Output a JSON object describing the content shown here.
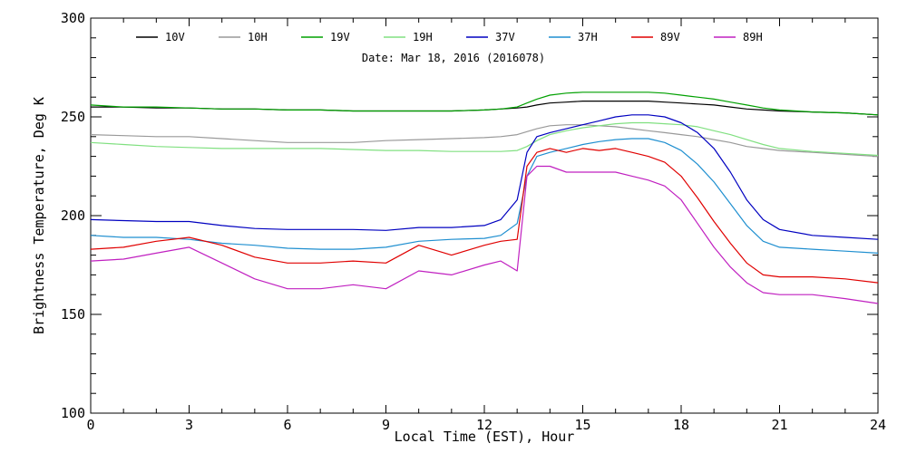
{
  "chart_data": {
    "type": "line",
    "title": "",
    "subtitle": "Date: Mar 18, 2016 (2016078)",
    "xlabel": "Local Time (EST), Hour",
    "ylabel": "Brightness Temperature, Deg K",
    "xlim": [
      0,
      24
    ],
    "ylim": [
      100,
      300
    ],
    "x_ticks": [
      0,
      3,
      6,
      9,
      12,
      15,
      18,
      21,
      24
    ],
    "x_tick_labels": [
      "0",
      "3",
      "6",
      "9",
      "12",
      "15",
      "18",
      "21",
      "24"
    ],
    "y_ticks": [
      100,
      150,
      200,
      250,
      300
    ],
    "y_tick_labels": [
      "100",
      "150",
      "200",
      "250",
      "300"
    ],
    "grid": false,
    "legend_position": "top",
    "x": [
      0,
      1,
      2,
      3,
      4,
      5,
      6,
      7,
      8,
      9,
      10,
      11,
      12,
      12.5,
      13,
      13.3,
      13.6,
      14,
      14.5,
      15,
      15.5,
      16,
      16.5,
      17,
      17.5,
      18,
      18.5,
      19,
      19.5,
      20,
      20.5,
      21,
      22,
      23,
      24
    ],
    "series": [
      {
        "name": "10V",
        "color": "#000000",
        "values": [
          255,
          255,
          254.5,
          254.5,
          254,
          254,
          253.5,
          253.5,
          253,
          253,
          253,
          253,
          253.5,
          254,
          254.5,
          255,
          256,
          257,
          257.5,
          258,
          258,
          258,
          258,
          258,
          257.5,
          257,
          256.5,
          256,
          255,
          254,
          253.5,
          253,
          252.5,
          252,
          251
        ]
      },
      {
        "name": "10H",
        "color": "#999999",
        "values": [
          241,
          240.5,
          240,
          240,
          239,
          238,
          237,
          237,
          237,
          238,
          238.5,
          239,
          239.5,
          240,
          241,
          242.5,
          244,
          245.5,
          246,
          246,
          245.5,
          245,
          244,
          243,
          242,
          241,
          240,
          238.5,
          237,
          235,
          234,
          233,
          232,
          231,
          230
        ]
      },
      {
        "name": "19V",
        "color": "#00a000",
        "values": [
          256,
          255,
          255,
          254.5,
          254,
          254,
          253.5,
          253.5,
          253,
          253,
          253,
          253,
          253.5,
          254,
          255,
          257,
          259,
          261,
          262,
          262.5,
          262.5,
          262.5,
          262.5,
          262.5,
          262,
          261,
          260,
          259,
          257.5,
          256,
          254.5,
          253.5,
          252.5,
          252,
          251
        ]
      },
      {
        "name": "19H",
        "color": "#80e080",
        "values": [
          237,
          236,
          235,
          234.5,
          234,
          234,
          234,
          234,
          233.5,
          233,
          233,
          232.5,
          232.5,
          232.5,
          233,
          235,
          238,
          241,
          243,
          244.5,
          245.5,
          246.5,
          247,
          247,
          246.5,
          246,
          245,
          243,
          241,
          238.5,
          236,
          234,
          232.5,
          231.5,
          230.5
        ]
      },
      {
        "name": "37V",
        "color": "#0000c0",
        "values": [
          198,
          197.5,
          197,
          197,
          195,
          193.5,
          193,
          193,
          193,
          192.5,
          194,
          194,
          195,
          198,
          208,
          232,
          240,
          242,
          244,
          246,
          248,
          250,
          251,
          251,
          250,
          247,
          242,
          234,
          222,
          208,
          198,
          193,
          190,
          189,
          188
        ]
      },
      {
        "name": "37H",
        "color": "#1f8fd0",
        "values": [
          190,
          189,
          189,
          188,
          186,
          185,
          183.5,
          183,
          183,
          184,
          187,
          188,
          188.5,
          190,
          196,
          220,
          230,
          232,
          234,
          236,
          237.5,
          238.5,
          239,
          239,
          237,
          233,
          226,
          217,
          206,
          195,
          187,
          184,
          183,
          182,
          181
        ]
      },
      {
        "name": "89V",
        "color": "#e00000",
        "values": [
          183,
          184,
          187,
          189,
          185,
          179,
          176,
          176,
          177,
          176,
          185,
          180,
          185,
          187,
          188,
          225,
          232,
          234,
          232,
          234,
          233,
          234,
          232,
          230,
          227,
          220,
          209,
          197,
          186,
          176,
          170,
          169,
          169,
          168,
          166
        ]
      },
      {
        "name": "89H",
        "color": "#c020c0",
        "values": [
          177,
          178,
          181,
          184,
          176,
          168,
          163,
          163,
          165,
          163,
          172,
          170,
          175,
          177,
          172,
          220,
          225,
          225,
          222,
          222,
          222,
          222,
          220,
          218,
          215,
          208,
          196,
          184,
          174,
          166,
          161,
          160,
          160,
          158,
          155.5
        ]
      }
    ]
  }
}
